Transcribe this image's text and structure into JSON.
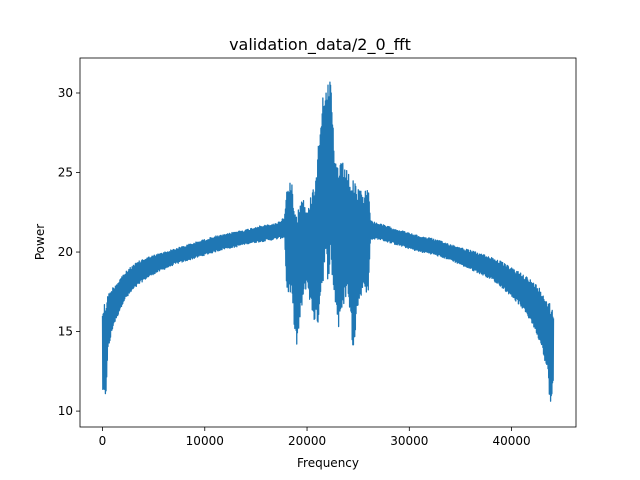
{
  "chart_data": {
    "type": "line",
    "title": "validation_data/2_0_fft",
    "xlabel": "Frequency",
    "ylabel": "Power",
    "xlim": [
      -2200,
      46300
    ],
    "ylim": [
      9.0,
      32.2
    ],
    "xticks": [
      0,
      10000,
      20000,
      30000,
      40000
    ],
    "xtick_labels": [
      "0",
      "10000",
      "20000",
      "30000",
      "40000"
    ],
    "yticks": [
      10,
      15,
      20,
      25,
      30
    ],
    "ytick_labels": [
      "10",
      "15",
      "20",
      "25",
      "30"
    ],
    "grid": false,
    "legend": "none",
    "series": [
      {
        "color": "#1f77b4",
        "x": [
          0,
          150,
          300,
          500,
          1000,
          2000,
          3000,
          4000,
          5000,
          6000,
          7000,
          8000,
          9000,
          10000,
          11000,
          12000,
          13000,
          14000,
          15000,
          16000,
          17000,
          17800,
          18000,
          18500,
          19000,
          19500,
          20000,
          20500,
          21000,
          21400,
          21800,
          22050,
          22300,
          22700,
          23100,
          23500,
          24000,
          24500,
          25000,
          25500,
          26000,
          26200,
          27000,
          28000,
          29000,
          30000,
          31000,
          32000,
          33000,
          34000,
          35000,
          36000,
          37000,
          38000,
          39000,
          40000,
          41000,
          42000,
          43000,
          43600,
          43800,
          44000,
          44100
        ],
        "upper": [
          16.5,
          16.8,
          17.0,
          17.3,
          17.8,
          18.6,
          19.2,
          19.6,
          19.8,
          20.0,
          20.2,
          20.4,
          20.6,
          20.8,
          21.0,
          21.1,
          21.3,
          21.4,
          21.6,
          21.7,
          21.8,
          22.2,
          24.0,
          24.5,
          22.5,
          23.8,
          22.4,
          24.0,
          25.8,
          29.5,
          31.1,
          30.5,
          31.0,
          26.0,
          25.6,
          25.6,
          25.0,
          24.5,
          24.0,
          23.8,
          24.2,
          22.0,
          21.8,
          21.6,
          21.4,
          21.2,
          21.0,
          20.9,
          20.7,
          20.5,
          20.3,
          20.1,
          19.9,
          19.7,
          19.4,
          19.0,
          18.7,
          18.2,
          17.6,
          17.0,
          16.8,
          16.6,
          16.4
        ],
        "lower": [
          11.2,
          10.8,
          10.2,
          13.5,
          15.2,
          16.8,
          17.6,
          18.2,
          18.6,
          18.9,
          19.2,
          19.4,
          19.6,
          19.8,
          20.0,
          20.2,
          20.3,
          20.5,
          20.6,
          20.7,
          20.8,
          20.9,
          17.6,
          17.0,
          13.8,
          16.5,
          18.0,
          16.0,
          15.0,
          17.5,
          19.0,
          18.2,
          19.2,
          17.0,
          15.0,
          16.5,
          17.5,
          13.8,
          16.5,
          17.8,
          17.2,
          20.8,
          20.8,
          20.6,
          20.4,
          20.2,
          20.0,
          19.9,
          19.7,
          19.5,
          19.2,
          18.9,
          18.6,
          18.3,
          17.8,
          17.2,
          16.5,
          15.5,
          14.0,
          12.0,
          9.9,
          11.0,
          11.5
        ]
      }
    ]
  }
}
